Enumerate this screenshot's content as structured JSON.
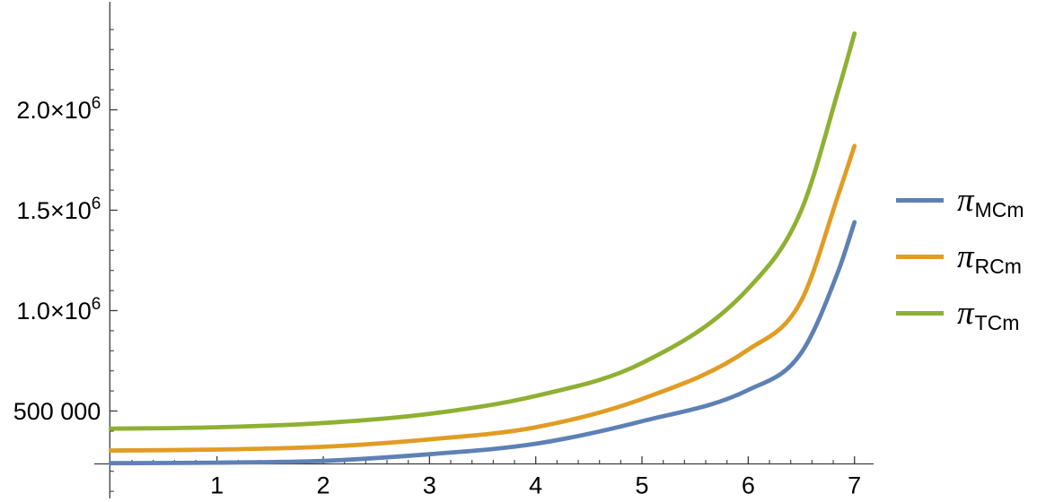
{
  "figure": {
    "background": "#ffffff",
    "axis_color": "#3c3c3c",
    "tick_label_color": "#000000"
  },
  "chart_data": {
    "type": "line",
    "title": "",
    "xlabel": "",
    "ylabel": "",
    "grid": false,
    "legend_position": "right-outside",
    "xlim": [
      -0.155,
      7.18
    ],
    "ylim": [
      236600,
      2500000
    ],
    "x_ticks_major": [
      1,
      2,
      3,
      4,
      5,
      6,
      7
    ],
    "x_tick_labels": [
      "1",
      "2",
      "3",
      "4",
      "5",
      "6",
      "7"
    ],
    "x_minor_step": 0.2,
    "y_ticks_major": [
      {
        "value": 500000,
        "label": "500 000"
      },
      {
        "value": 1000000,
        "label": "1.0×10^6"
      },
      {
        "value": 1500000,
        "label": "1.5×10^6"
      },
      {
        "value": 2000000,
        "label": "2.0×10^6"
      }
    ],
    "y_minor_step": 100000,
    "x": [
      0,
      1,
      2,
      3,
      4,
      5,
      6,
      6.5,
      6.85,
      7
    ],
    "series": [
      {
        "name": "π_MCm",
        "color": "#5e81b5",
        "values": [
          240000,
          243000,
          252000,
          285000,
          337000,
          449000,
          605000,
          790000,
          1200000,
          1440000
        ]
      },
      {
        "name": "π_RCm",
        "color": "#e19c24",
        "values": [
          303000,
          308000,
          322000,
          359000,
          419000,
          560000,
          806000,
          1050000,
          1580000,
          1820000
        ]
      },
      {
        "name": "π_TCm",
        "color": "#8fb032",
        "values": [
          412000,
          419000,
          440000,
          486000,
          575000,
          739000,
          1110000,
          1500000,
          2100000,
          2380000
        ]
      }
    ]
  },
  "legend": {
    "items": [
      {
        "symbol": "π",
        "subscript": "MCm",
        "color": "#5e81b5"
      },
      {
        "symbol": "π",
        "subscript": "RCm",
        "color": "#e19c24"
      },
      {
        "symbol": "π",
        "subscript": "TCm",
        "color": "#8fb032"
      }
    ]
  }
}
